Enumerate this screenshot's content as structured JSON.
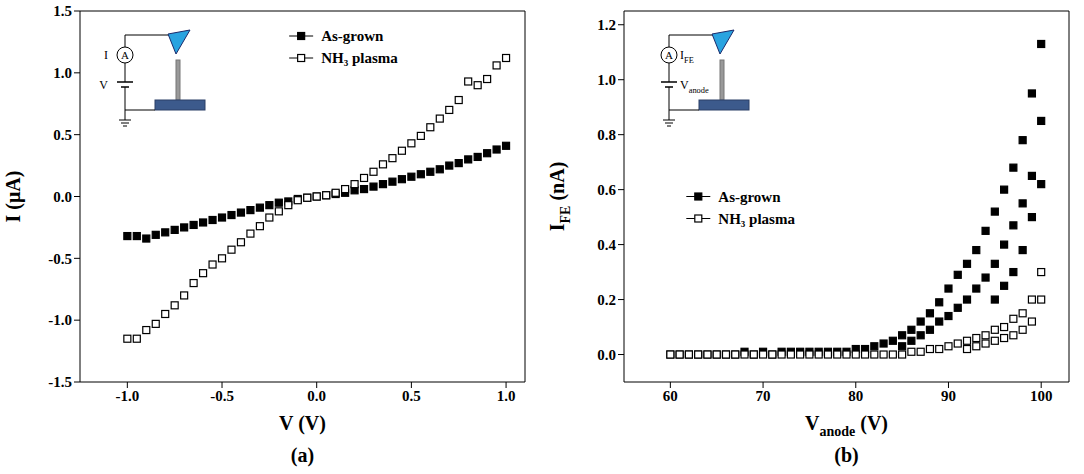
{
  "chart_data": [
    {
      "type": "scatter",
      "panel": "(a)",
      "x_label": "V (V)",
      "y_label": "I (μA)",
      "legend": "upper center",
      "inset": {
        "meter": "A",
        "current": [
          "I"
        ],
        "voltage": [
          "V"
        ]
      },
      "xlim": [
        -1.25,
        1.1
      ],
      "xticks": [
        {
          "value": -1,
          "label": "-1.0"
        },
        -0.5,
        {
          "value": 0,
          "label": "0.0"
        },
        0.5,
        {
          "value": 1,
          "label": "1.0"
        }
      ],
      "ylim": [
        -1.5,
        1.5
      ],
      "yticks": [
        -1.5,
        {
          "value": -1,
          "label": "-1.0"
        },
        -0.5,
        {
          "value": 0,
          "label": "0.0"
        },
        0.5,
        {
          "value": 1,
          "label": "1.0"
        },
        1.5
      ],
      "x": [
        -1,
        -0.95,
        -0.9,
        -0.85,
        -0.8,
        -0.75,
        -0.7,
        -0.65,
        -0.6,
        -0.55,
        -0.5,
        -0.45,
        -0.4,
        -0.35,
        -0.3,
        -0.25,
        -0.2,
        -0.15,
        -0.1,
        -0.05,
        0,
        0.05,
        0.1,
        0.15,
        0.2,
        0.25,
        0.3,
        0.35,
        0.4,
        0.45,
        0.5,
        0.55,
        0.6,
        0.65,
        0.7,
        0.75,
        0.8,
        0.85,
        0.9,
        0.95,
        1
      ],
      "series": [
        {
          "name": "As-grown",
          "color": "#000000",
          "marker": "filled_square",
          "values": [
            -0.32,
            -0.32,
            -0.34,
            -0.31,
            -0.29,
            -0.27,
            -0.25,
            -0.23,
            -0.21,
            -0.19,
            -0.17,
            -0.15,
            -0.13,
            -0.11,
            -0.09,
            -0.07,
            -0.05,
            -0.04,
            -0.02,
            -0.01,
            0,
            0.01,
            0.02,
            0.03,
            0.05,
            0.06,
            0.08,
            0.1,
            0.12,
            0.14,
            0.16,
            0.18,
            0.2,
            0.22,
            0.25,
            0.27,
            0.3,
            0.32,
            0.35,
            0.38,
            0.41
          ]
        },
        {
          "name": "NH₃ plasma",
          "color": "#000000",
          "marker": "open_square",
          "values": [
            -1.15,
            -1.15,
            -1.08,
            -1.03,
            -0.95,
            -0.88,
            -0.8,
            -0.7,
            -0.62,
            -0.55,
            -0.5,
            -0.43,
            -0.37,
            -0.3,
            -0.24,
            -0.17,
            -0.12,
            -0.07,
            -0.03,
            -0.01,
            0,
            0.01,
            0.03,
            0.06,
            0.1,
            0.15,
            0.2,
            0.26,
            0.31,
            0.37,
            0.43,
            0.49,
            0.56,
            0.63,
            0.7,
            0.78,
            0.93,
            0.9,
            0.95,
            1.06,
            1.12
          ]
        }
      ]
    },
    {
      "type": "scatter",
      "panel": "(b)",
      "x_label": [
        "V",
        "anode",
        " (V)"
      ],
      "y_label": [
        "I",
        "FE",
        " (nA)"
      ],
      "legend": "center left",
      "inset": {
        "meter": "A",
        "current": [
          "I",
          "FE"
        ],
        "voltage": [
          "V",
          "anode"
        ]
      },
      "xlim": [
        55,
        103
      ],
      "xticks": [
        60,
        70,
        80,
        90,
        100
      ],
      "ylim": [
        -0.1,
        1.25
      ],
      "yticks": [
        {
          "value": 0,
          "label": "0.0"
        },
        0.2,
        0.4,
        0.6,
        0.8,
        {
          "value": 1,
          "label": "1.0"
        },
        1.2
      ],
      "series": [
        {
          "name": "As-grown",
          "color": "#000000",
          "marker": "filled_square",
          "x": [
            60,
            61,
            62,
            63,
            64,
            65,
            66,
            67,
            68,
            69,
            70,
            71,
            72,
            73,
            74,
            75,
            76,
            77,
            78,
            79,
            80,
            81,
            82,
            83,
            84,
            85,
            86,
            87,
            88,
            89,
            90,
            91,
            92,
            93,
            94,
            95,
            96,
            97,
            98,
            99,
            100,
            85,
            86,
            87,
            88,
            89,
            90,
            91,
            92,
            93,
            94,
            95,
            96,
            97,
            98,
            99,
            100,
            95,
            96,
            97,
            98,
            99,
            100
          ],
          "values": [
            0,
            0,
            0,
            0,
            0,
            0,
            0,
            0,
            0.01,
            0,
            0.01,
            0,
            0.01,
            0.01,
            0.01,
            0.01,
            0.01,
            0.01,
            0.01,
            0.01,
            0.02,
            0.02,
            0.03,
            0.04,
            0.05,
            0.07,
            0.09,
            0.12,
            0.15,
            0.19,
            0.24,
            0.29,
            0.33,
            0.38,
            0.45,
            0.52,
            0.6,
            0.68,
            0.78,
            0.95,
            1.13,
            0.03,
            0.05,
            0.07,
            0.09,
            0.12,
            0.14,
            0.17,
            0.2,
            0.24,
            0.28,
            0.33,
            0.4,
            0.47,
            0.55,
            0.65,
            0.85,
            0.2,
            0.25,
            0.3,
            0.38,
            0.5,
            0.62
          ]
        },
        {
          "name": "NH₃ plasma",
          "color": "#000000",
          "marker": "open_square",
          "x": [
            60,
            61,
            62,
            63,
            64,
            65,
            66,
            67,
            68,
            69,
            70,
            71,
            72,
            73,
            74,
            75,
            76,
            77,
            78,
            79,
            80,
            81,
            82,
            83,
            84,
            85,
            86,
            87,
            88,
            89,
            90,
            91,
            92,
            93,
            94,
            95,
            96,
            97,
            98,
            99,
            100,
            92,
            93,
            94,
            95,
            96,
            97,
            98,
            99,
            100
          ],
          "values": [
            0,
            0,
            0,
            0,
            0,
            0,
            0,
            0,
            0,
            0,
            0,
            0,
            0,
            0,
            0,
            0,
            0,
            0,
            0,
            0,
            0,
            0,
            0,
            0,
            0,
            0,
            0.01,
            0.01,
            0.02,
            0.02,
            0.03,
            0.04,
            0.05,
            0.06,
            0.07,
            0.09,
            0.1,
            0.13,
            0.15,
            0.2,
            0.3,
            0.02,
            0.03,
            0.04,
            0.05,
            0.06,
            0.07,
            0.09,
            0.12,
            0.2
          ]
        }
      ]
    }
  ]
}
